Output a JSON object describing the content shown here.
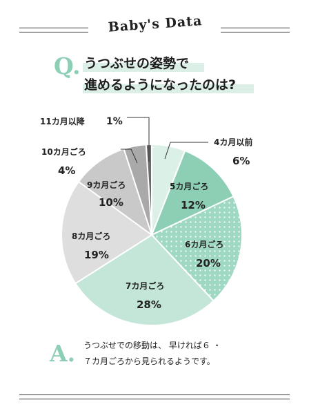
{
  "header": {
    "title": "Baby's Data"
  },
  "question": {
    "mark": "Q.",
    "line1": "うつぶせの姿勢で",
    "line2": "進めるようになったのは?"
  },
  "answer": {
    "mark": "A.",
    "line1": "うつぶせでの移動は、 早ければ６ ・",
    "line2": "７カ月ごろから見られるようです。"
  },
  "colors": {
    "accent": "#8ccfb5",
    "highlight": "#dcefe6",
    "slice_4m": "#dbf1e8",
    "slice_5m": "#8ccfb5",
    "slice_6m": "#9fd9c3",
    "slice_7m": "#c4e6d8",
    "slice_8m": "#dedede",
    "slice_9m": "#c9c9c9",
    "slice_10m": "#a9a9a9",
    "slice_11m": "#6b6b6b"
  },
  "chart_data": {
    "type": "pie",
    "title": "",
    "categories": [
      "4カ月以前",
      "5カ月ごろ",
      "6カ月ごろ",
      "7カ月ごろ",
      "8カ月ごろ",
      "9カ月ごろ",
      "10カ月ごろ",
      "11カ月以降"
    ],
    "values": [
      6,
      12,
      20,
      28,
      19,
      10,
      4,
      1
    ],
    "value_labels": [
      "6%",
      "12%",
      "20%",
      "28%",
      "19%",
      "10%",
      "4%",
      "1%"
    ],
    "start": "12 o'clock",
    "direction": "clockwise",
    "legend": "none"
  }
}
